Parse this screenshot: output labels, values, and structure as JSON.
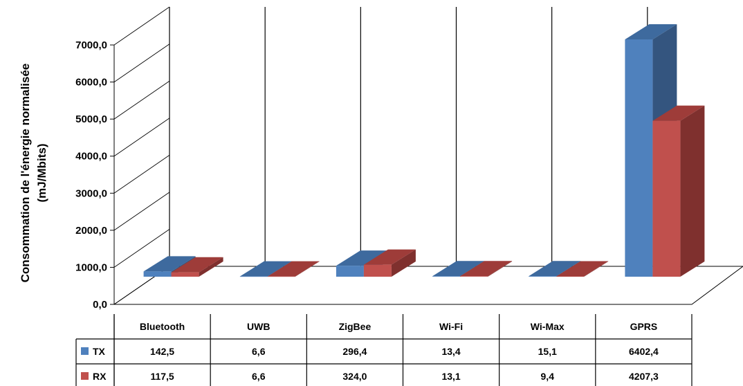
{
  "chart_data": {
    "type": "bar",
    "categories": [
      "Bluetooth",
      "UWB",
      "ZigBee",
      "Wi-Fi",
      "Wi-Max",
      "GPRS"
    ],
    "series": [
      {
        "name": "TX",
        "values": [
          142.5,
          6.6,
          296.4,
          13.4,
          15.1,
          6402.4
        ],
        "labels": [
          "142,5",
          "6,6",
          "296,4",
          "13,4",
          "15,1",
          "6402,4"
        ],
        "color": "#4F81BD"
      },
      {
        "name": "RX",
        "values": [
          117.5,
          6.6,
          324.0,
          13.1,
          9.4,
          4207.3
        ],
        "labels": [
          "117,5",
          "6,6",
          "324,0",
          "13,1",
          "9,4",
          "4207,3"
        ],
        "color": "#C0504D"
      }
    ],
    "ylabel_line1": "Consommation de l'énergie normalisée",
    "ylabel_line2": "(mJ/Mbits)",
    "ylim": [
      0,
      7000
    ],
    "yticks": [
      0,
      1000,
      2000,
      3000,
      4000,
      5000,
      6000,
      7000
    ],
    "ytick_labels": [
      "0,0",
      "1000,0",
      "2000,0",
      "3000,0",
      "4000,0",
      "5000,0",
      "6000,0",
      "7000,0"
    ],
    "grid": true,
    "style": "3d-clustered-column",
    "data_table": true
  }
}
